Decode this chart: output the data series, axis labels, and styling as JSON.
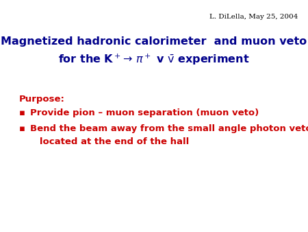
{
  "background_color": "#ffffff",
  "header_text": "L. DiLella, May 25, 2004",
  "header_color": "#000000",
  "header_fontsize": 7.5,
  "title_line1": "Magnetized hadronic calorimeter  and muon veto",
  "title_line2": "for the K$^+\\!\\rightarrow\\,\\pi^+$ v $\\bar{\\mathrm{v}}$ experiment",
  "title_color": "#00008B",
  "title_fontsize": 11.5,
  "purpose_label": "Purpose:",
  "purpose_color": "#cc0000",
  "purpose_fontsize": 9.5,
  "bullet_color": "#cc0000",
  "bullet_fontsize": 9.5,
  "bullet1": "Provide pion – muon separation (muon veto)",
  "bullet2_line1": "Bend the beam away from the small angle photon veto",
  "bullet2_line2": "   located at the end of the hall"
}
